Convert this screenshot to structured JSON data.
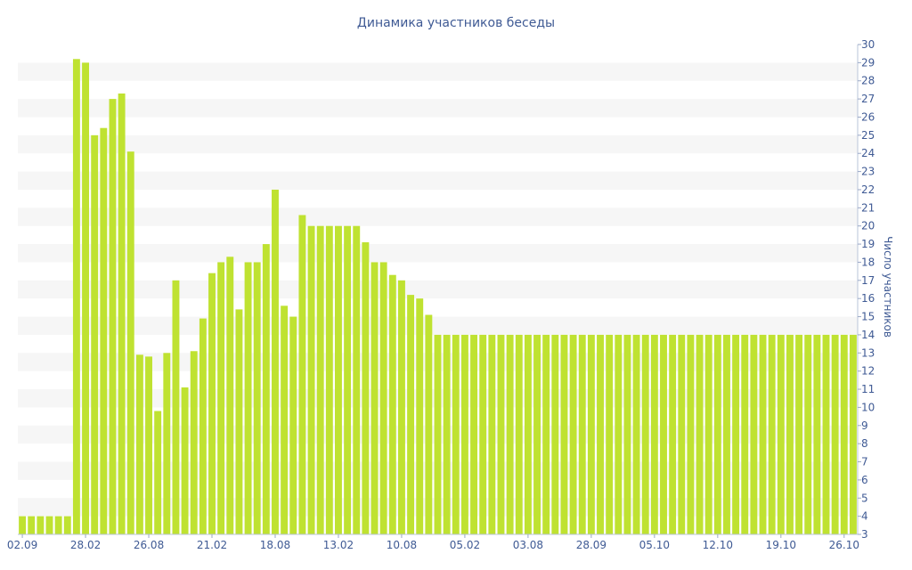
{
  "chart_data": {
    "type": "bar",
    "title": "Динамика участников беседы",
    "ylabel": "Число участников",
    "xlabel": "",
    "ylim": [
      3,
      30
    ],
    "y_axis_side": "right",
    "y_ticks": [
      3,
      4,
      5,
      6,
      7,
      8,
      9,
      10,
      11,
      12,
      13,
      14,
      15,
      16,
      17,
      18,
      19,
      20,
      21,
      22,
      23,
      24,
      25,
      26,
      27,
      28,
      29,
      30
    ],
    "x_tick_labels": [
      {
        "index": 0,
        "label": "02.09"
      },
      {
        "index": 7,
        "label": "28.02"
      },
      {
        "index": 14,
        "label": "26.08"
      },
      {
        "index": 21,
        "label": "21.02"
      },
      {
        "index": 28,
        "label": "18.08"
      },
      {
        "index": 35,
        "label": "13.02"
      },
      {
        "index": 42,
        "label": "10.08"
      },
      {
        "index": 49,
        "label": "05.02"
      },
      {
        "index": 56,
        "label": "03.08"
      },
      {
        "index": 63,
        "label": "28.09"
      },
      {
        "index": 70,
        "label": "05.10"
      },
      {
        "index": 77,
        "label": "12.10"
      },
      {
        "index": 84,
        "label": "19.10"
      },
      {
        "index": 91,
        "label": "26.10"
      }
    ],
    "values": [
      4,
      4,
      4,
      4,
      4,
      4,
      29.2,
      29,
      25,
      25.4,
      27,
      27.3,
      24.1,
      12.9,
      12.8,
      9.8,
      13,
      17,
      11.1,
      13.1,
      14.9,
      17.4,
      18,
      18.3,
      15.4,
      18,
      18,
      19,
      22,
      15.6,
      15,
      20.6,
      20,
      20,
      20,
      20,
      20,
      20,
      19.1,
      18,
      18,
      17.3,
      17,
      16.2,
      16,
      15.1,
      14,
      14,
      14,
      14,
      14,
      14,
      14,
      14,
      14,
      14,
      14,
      14,
      14,
      14,
      14,
      14,
      14,
      14,
      14,
      14,
      14,
      14,
      14,
      14,
      14,
      14,
      14,
      14,
      14,
      14,
      14,
      14,
      14,
      14,
      14,
      14,
      14,
      14,
      14,
      14,
      14,
      14,
      14,
      14,
      14,
      14,
      14
    ],
    "bar_color": "#bfe231",
    "grid": "horizontal alternating bands",
    "band_color": "#f6f6f6",
    "text_color": "#3f5a94"
  }
}
